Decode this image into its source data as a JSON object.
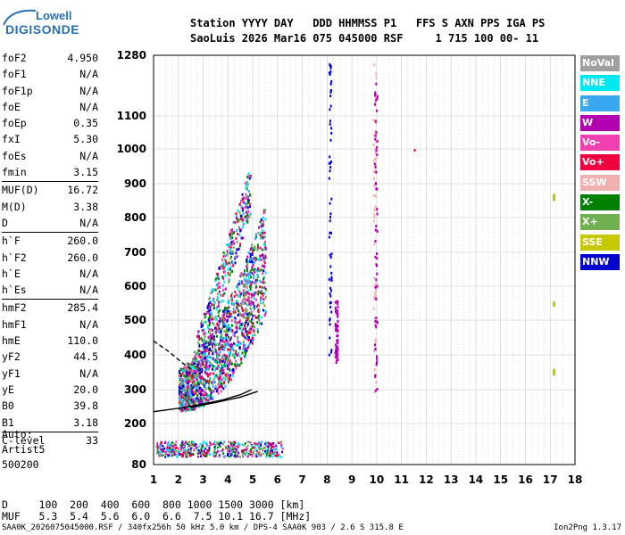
{
  "logo": {
    "line1": "Lowell",
    "line2": "DIGISONDE"
  },
  "header": {
    "line1": "Station YYYY DAY   DDD HHMMSS P1   FFS S AXN PPS IGA PS",
    "line2": "SaoLuis 2026 Mar16 075 045000 RSF     1 715 100 00- 11"
  },
  "params": [
    {
      "name": "foF2",
      "value": "4.950"
    },
    {
      "name": "foF1",
      "value": "N/A"
    },
    {
      "name": "foF1p",
      "value": "N/A"
    },
    {
      "name": "foE",
      "value": "N/A"
    },
    {
      "name": "foEp",
      "value": "0.35"
    },
    {
      "name": "fxI",
      "value": "5.30"
    },
    {
      "name": "foEs",
      "value": "N/A"
    },
    {
      "name": "fmin",
      "value": "3.15"
    },
    {
      "name": "MUF(D)",
      "value": "16.72"
    },
    {
      "name": "M(D)",
      "value": "3.38"
    },
    {
      "name": "D",
      "value": "N/A"
    },
    {
      "name": "h`F",
      "value": "260.0"
    },
    {
      "name": "h`F2",
      "value": "260.0"
    },
    {
      "name": "h`E",
      "value": "N/A"
    },
    {
      "name": "h`Es",
      "value": "N/A"
    },
    {
      "name": "hmF2",
      "value": "285.4"
    },
    {
      "name": "hmF1",
      "value": "N/A"
    },
    {
      "name": "hmE",
      "value": "110.0"
    },
    {
      "name": "yF2",
      "value": "44.5"
    },
    {
      "name": "yF1",
      "value": "N/A"
    },
    {
      "name": "yE",
      "value": "20.0"
    },
    {
      "name": "B0",
      "value": "39.8"
    },
    {
      "name": "B1",
      "value": "3.18"
    },
    {
      "name": "C-level",
      "value": "33"
    }
  ],
  "auto": {
    "line1": "Auto:",
    "line2": "Artist5",
    "line3": "500200"
  },
  "legend": [
    {
      "label": "NoVal",
      "color": "#a0a0a0"
    },
    {
      "label": "NNE",
      "color": "#00e8f0"
    },
    {
      "label": "E",
      "color": "#39a8f0"
    },
    {
      "label": "W",
      "color": "#b000b0"
    },
    {
      "label": "Vo-",
      "color": "#f040b0"
    },
    {
      "label": "Vo+",
      "color": "#f00040"
    },
    {
      "label": "SSW",
      "color": "#f0b0b0"
    },
    {
      "label": "X-",
      "color": "#008000"
    },
    {
      "label": "X+",
      "color": "#70b050"
    },
    {
      "label": "SSE",
      "color": "#c8c800"
    },
    {
      "label": "NNW",
      "color": "#0000d0"
    }
  ],
  "bottom": {
    "d_line": "D     100  200  400  600  800 1000 1500 3000 [km]",
    "muf_line": "MUF   5.3  5.4  5.6  6.0  6.6  7.5 10.1 16.7 [MHz]"
  },
  "footer": {
    "left": "SAA0K_2026075045000.RSF / 340fx256h 50 kHz 5.0 km / DPS-4 SAA0K 903 / 2.6 S 315.8 E",
    "right": "Ion2Png 1.3.17"
  },
  "chart_data": {
    "type": "scatter",
    "title": "",
    "xlabel": "",
    "ylabel": "",
    "xlim": [
      1,
      18
    ],
    "ylim": [
      80,
      1280
    ],
    "x_ticks": [
      "1",
      "2",
      "3",
      "4",
      "5",
      "6",
      "7",
      "8",
      "9",
      "10",
      "11",
      "12",
      "13",
      "14",
      "15",
      "16",
      "17",
      "18"
    ],
    "y_ticks": [
      "80",
      "200",
      "300",
      "400",
      "500",
      "600",
      "700",
      "800",
      "900",
      "1000",
      "1100",
      "1280"
    ],
    "grid": true,
    "traces": [
      {
        "name": "O-trace profile",
        "values": [
          [
            1.0,
            235
          ],
          [
            2.0,
            245
          ],
          [
            3.0,
            258
          ],
          [
            3.8,
            270
          ],
          [
            4.5,
            285
          ],
          [
            4.95,
            300
          ]
        ]
      },
      {
        "name": "X-trace",
        "values": [
          [
            2.5,
            248
          ],
          [
            3.5,
            262
          ],
          [
            4.5,
            278
          ],
          [
            5.2,
            295
          ]
        ]
      },
      {
        "name": "profile branch",
        "values": [
          [
            1.0,
            440
          ],
          [
            1.6,
            410
          ],
          [
            2.2,
            375
          ],
          [
            2.6,
            355
          ]
        ]
      }
    ],
    "echo_regions": [
      {
        "name": "F-layer echoes",
        "x": [
          2.0,
          5.5
        ],
        "y": [
          240,
          560
        ]
      },
      {
        "name": "E/sporadic echoes",
        "x": [
          1.0,
          6.5
        ],
        "y": [
          100,
          160
        ]
      },
      {
        "name": "multi-hop echoes",
        "x": [
          2.5,
          5.0
        ],
        "y": [
          600,
          1000
        ]
      },
      {
        "name": "interference 8 MHz",
        "x": [
          8.0,
          8.4
        ],
        "y": [
          380,
          1280
        ]
      },
      {
        "name": "interference 9.9 MHz",
        "x": [
          9.8,
          10.0
        ],
        "y": [
          280,
          1280
        ]
      }
    ]
  }
}
